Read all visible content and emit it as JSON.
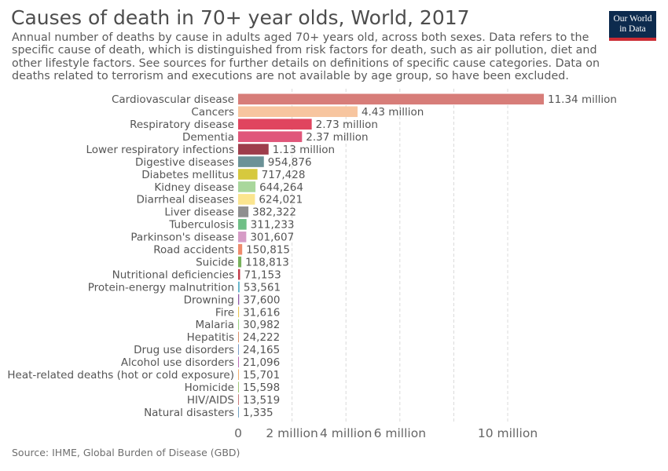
{
  "header": {
    "title": "Causes of death in 70+ year olds, World, 2017",
    "subtitle": "Annual number of deaths by cause in adults aged 70+ years old, across both sexes. Data refers to the specific cause of death, which is distinguished from risk factors for death, such as air pollution, diet and other lifestyle factors. See sources for further details on definitions of specific cause categories. Data on deaths related to terrorism and executions are not available by age group, so have been excluded."
  },
  "logo": {
    "line1": "Our World",
    "line2": "in Data"
  },
  "footer": {
    "source": "Source: IHME, Global Burden of Disease (GBD)"
  },
  "chart_data": {
    "type": "bar",
    "orientation": "horizontal",
    "xlim": [
      0,
      11340000
    ],
    "grid": true,
    "x_ticks": [
      {
        "value": 0,
        "label": "0"
      },
      {
        "value": 2000000,
        "label": "2 million"
      },
      {
        "value": 4000000,
        "label": "4 million"
      },
      {
        "value": 6000000,
        "label": "6 million"
      },
      {
        "value": 10000000,
        "label": "10 million"
      }
    ],
    "gridlines": [
      2000000,
      4000000,
      6000000,
      8000000,
      10000000
    ],
    "bars": [
      {
        "category": "Cardiovascular disease",
        "value": 11340000,
        "label": "11.34 million",
        "color": "#d77d79"
      },
      {
        "category": "Cancers",
        "value": 4430000,
        "label": "4.43 million",
        "color": "#f7c59f"
      },
      {
        "category": "Respiratory disease",
        "value": 2730000,
        "label": "2.73 million",
        "color": "#e0455f"
      },
      {
        "category": "Dementia",
        "value": 2370000,
        "label": "2.37 million",
        "color": "#e0567a"
      },
      {
        "category": "Lower respiratory infections",
        "value": 1130000,
        "label": "1.13 million",
        "color": "#9e3d4b"
      },
      {
        "category": "Digestive diseases",
        "value": 954876,
        "label": "954,876",
        "color": "#6b9297"
      },
      {
        "category": "Diabetes mellitus",
        "value": 717428,
        "label": "717,428",
        "color": "#d6c93e"
      },
      {
        "category": "Kidney disease",
        "value": 644264,
        "label": "644,264",
        "color": "#a9d79c"
      },
      {
        "category": "Diarrheal diseases",
        "value": 624021,
        "label": "624,021",
        "color": "#fbe58f"
      },
      {
        "category": "Liver disease",
        "value": 382322,
        "label": "382,322",
        "color": "#8f8f8f"
      },
      {
        "category": "Tuberculosis",
        "value": 311233,
        "label": "311,233",
        "color": "#6fbf86"
      },
      {
        "category": "Parkinson's disease",
        "value": 301607,
        "label": "301,607",
        "color": "#d69bc6"
      },
      {
        "category": "Road accidents",
        "value": 150815,
        "label": "150,815",
        "color": "#ef8b6c"
      },
      {
        "category": "Suicide",
        "value": 118813,
        "label": "118,813",
        "color": "#78b15c"
      },
      {
        "category": "Nutritional deficiencies",
        "value": 71153,
        "label": "71,153",
        "color": "#c23b4a"
      },
      {
        "category": "Protein-energy malnutrition",
        "value": 53561,
        "label": "53,561",
        "color": "#5db3c9"
      },
      {
        "category": "Drowning",
        "value": 37600,
        "label": "37,600",
        "color": "#8f5aa6"
      },
      {
        "category": "Fire",
        "value": 31616,
        "label": "31,616",
        "color": "#e8c456"
      },
      {
        "category": "Malaria",
        "value": 30982,
        "label": "30,982",
        "color": "#9ad07f"
      },
      {
        "category": "Hepatitis",
        "value": 24222,
        "label": "24,222",
        "color": "#d9916b"
      },
      {
        "category": "Drug use disorders",
        "value": 24165,
        "label": "24,165",
        "color": "#7a9cc6"
      },
      {
        "category": "Alcohol use disorders",
        "value": 21096,
        "label": "21,096",
        "color": "#b86bb5"
      },
      {
        "category": "Heat-related deaths (hot or cold exposure)",
        "value": 15701,
        "label": "15,701",
        "color": "#f0b070"
      },
      {
        "category": "Homicide",
        "value": 15598,
        "label": "15,598",
        "color": "#a0c878"
      },
      {
        "category": "HIV/AIDS",
        "value": 13519,
        "label": "13,519",
        "color": "#c87a7a"
      },
      {
        "category": "Natural disasters",
        "value": 1335,
        "label": "1,335",
        "color": "#70a0c0"
      }
    ]
  }
}
